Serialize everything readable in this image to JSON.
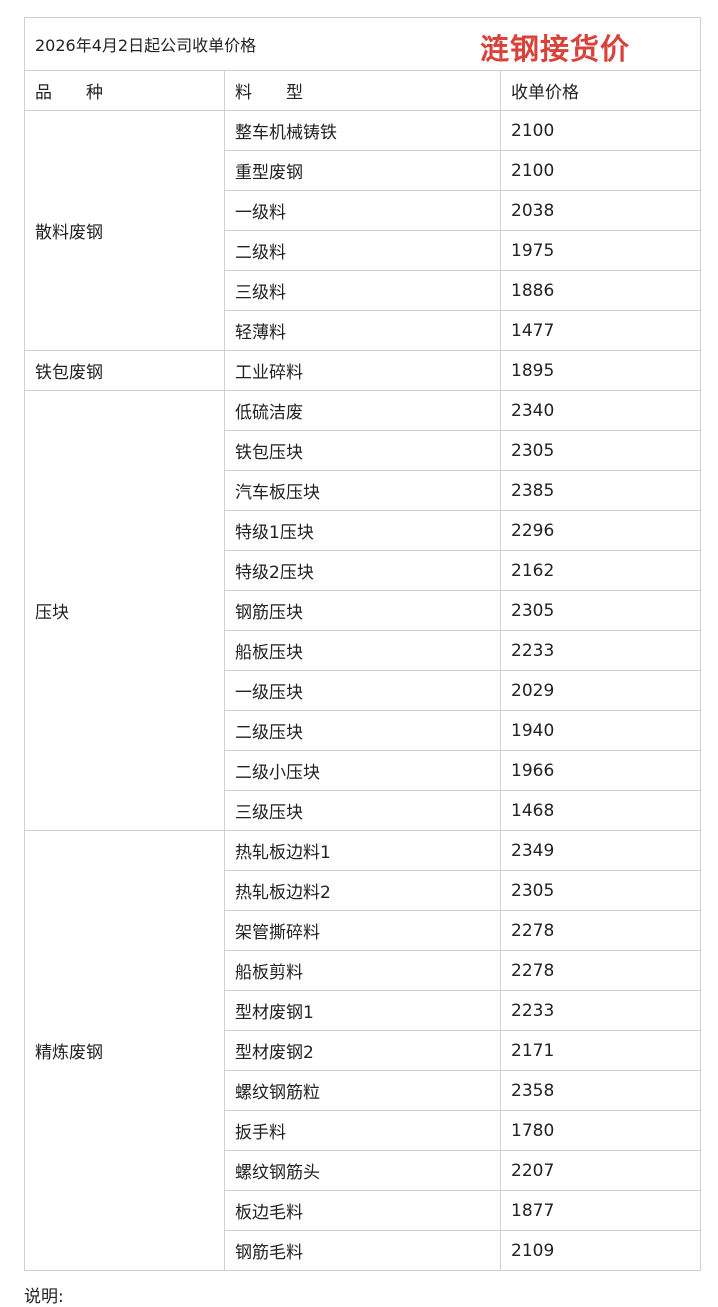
{
  "header": {
    "title": "2026年4月2日起公司收单价格",
    "badge": "涟钢接货价"
  },
  "columns": [
    "品　　种",
    "料　　型",
    "收单价格"
  ],
  "groups": [
    {
      "name": "散料废钢",
      "rows": [
        {
          "type": "整车机械铸铁",
          "price": 2100
        },
        {
          "type": "重型废钢",
          "price": 2100
        },
        {
          "type": "一级料",
          "price": 2038
        },
        {
          "type": "二级料",
          "price": 1975
        },
        {
          "type": "三级料",
          "price": 1886
        },
        {
          "type": "轻薄料",
          "price": 1477
        }
      ]
    },
    {
      "name": "铁包废钢",
      "rows": [
        {
          "type": "工业碎料",
          "price": 1895
        }
      ]
    },
    {
      "name": "压块",
      "rows": [
        {
          "type": "低硫洁废",
          "price": 2340
        },
        {
          "type": "铁包压块",
          "price": 2305
        },
        {
          "type": "汽车板压块",
          "price": 2385
        },
        {
          "type": "特级1压块",
          "price": 2296
        },
        {
          "type": "特级2压块",
          "price": 2162
        },
        {
          "type": "钢筋压块",
          "price": 2305
        },
        {
          "type": "船板压块",
          "price": 2233
        },
        {
          "type": "一级压块",
          "price": 2029
        },
        {
          "type": "二级压块",
          "price": 1940
        },
        {
          "type": "二级小压块",
          "price": 1966
        },
        {
          "type": "三级压块",
          "price": 1468
        }
      ]
    },
    {
      "name": "精炼废钢",
      "rows": [
        {
          "type": "热轧板边料1",
          "price": 2349
        },
        {
          "type": "热轧板边料2",
          "price": 2305
        },
        {
          "type": "架管撕碎料",
          "price": 2278
        },
        {
          "type": "船板剪料",
          "price": 2278
        },
        {
          "type": "型材废钢1",
          "price": 2233
        },
        {
          "type": "型材废钢2",
          "price": 2171
        },
        {
          "type": "螺纹钢筋粒",
          "price": 2358
        },
        {
          "type": "扳手料",
          "price": 1780
        },
        {
          "type": "螺纹钢筋头",
          "price": 2207
        },
        {
          "type": "板边毛料",
          "price": 1877
        },
        {
          "type": "钢筋毛料",
          "price": 2109
        }
      ]
    }
  ],
  "footer": "说明:"
}
